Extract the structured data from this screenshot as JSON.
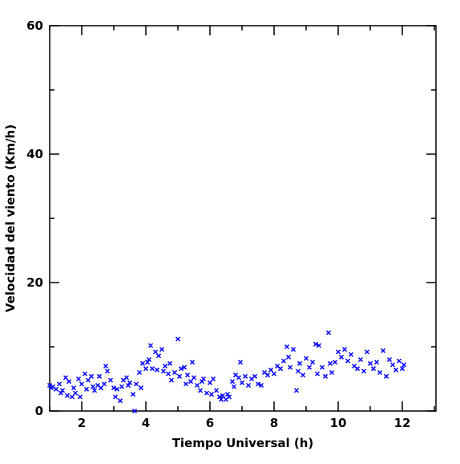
{
  "chart_data": {
    "type": "scatter",
    "xlabel": "Tiempo Universal (h)",
    "ylabel": "Velocidad del viento (Km/h)",
    "color": "#0000ff",
    "xlim": [
      1,
      13.05
    ],
    "ylim": [
      0,
      60
    ],
    "xticks": [
      2,
      4,
      6,
      8,
      10,
      12
    ],
    "yticks": [
      0,
      20,
      40,
      60
    ],
    "xminor_ticks": [
      1,
      3,
      5,
      7,
      9,
      11,
      13
    ],
    "yminor_ticks": [
      10,
      30,
      50
    ],
    "x": [
      1.0,
      1.05,
      1.1,
      1.2,
      1.3,
      1.35,
      1.4,
      1.5,
      1.55,
      1.6,
      1.7,
      1.75,
      1.8,
      1.9,
      1.95,
      2.0,
      2.1,
      2.15,
      2.2,
      2.3,
      2.35,
      2.4,
      2.5,
      2.55,
      2.6,
      2.7,
      2.75,
      2.8,
      2.9,
      3.0,
      3.05,
      3.1,
      3.2,
      3.25,
      3.3,
      3.4,
      3.45,
      3.5,
      3.6,
      3.65,
      3.7,
      3.8,
      3.85,
      3.9,
      4.0,
      4.05,
      4.1,
      4.15,
      4.2,
      4.3,
      4.35,
      4.4,
      4.5,
      4.55,
      4.6,
      4.7,
      4.75,
      4.8,
      4.9,
      5.0,
      5.05,
      5.1,
      5.2,
      5.25,
      5.3,
      5.4,
      5.45,
      5.5,
      5.6,
      5.7,
      5.75,
      5.8,
      5.9,
      6.0,
      6.05,
      6.1,
      6.2,
      6.3,
      6.35,
      6.4,
      6.5,
      6.55,
      6.6,
      6.7,
      6.75,
      6.8,
      6.9,
      6.95,
      7.0,
      7.1,
      7.2,
      7.3,
      7.4,
      7.5,
      7.6,
      7.7,
      7.8,
      7.9,
      8.0,
      8.1,
      8.2,
      8.3,
      8.4,
      8.45,
      8.5,
      8.6,
      8.7,
      8.75,
      8.8,
      8.9,
      9.0,
      9.1,
      9.2,
      9.3,
      9.35,
      9.4,
      9.5,
      9.6,
      9.7,
      9.75,
      9.8,
      9.9,
      10.0,
      10.1,
      10.2,
      10.3,
      10.4,
      10.5,
      10.6,
      10.7,
      10.8,
      10.9,
      11.0,
      11.1,
      11.2,
      11.3,
      11.4,
      11.5,
      11.6,
      11.7,
      11.8,
      11.9,
      12.0,
      12.05
    ],
    "values": [
      4,
      3.6,
      3.8,
      3.4,
      4.2,
      2.8,
      3.2,
      5.2,
      2.4,
      4.6,
      2.2,
      3.6,
      2.8,
      5,
      2.2,
      4.2,
      5.8,
      3.4,
      4.8,
      5.4,
      3.8,
      3.2,
      4,
      5.4,
      3.6,
      4.2,
      7,
      6.2,
      4.8,
      3.6,
      2.2,
      3.4,
      1.6,
      3.8,
      4.8,
      5.2,
      4,
      4.4,
      2.6,
      0,
      4.2,
      6,
      3.6,
      7.4,
      6.6,
      7.6,
      8,
      10.2,
      6.6,
      9.2,
      6.4,
      8.6,
      9.6,
      6.2,
      7,
      5.8,
      7.4,
      4.8,
      6,
      11.2,
      5.4,
      6.6,
      6.8,
      4.2,
      5.6,
      4.6,
      7.6,
      5.2,
      4,
      3.2,
      4.6,
      5,
      2.8,
      4.4,
      2.6,
      5,
      3.2,
      2.2,
      1.8,
      2.4,
      1.8,
      2.6,
      2.2,
      4.6,
      3.8,
      5.6,
      5.2,
      7.6,
      4.4,
      5.4,
      4,
      5,
      5.4,
      4.2,
      4,
      6,
      5.6,
      6.4,
      5.8,
      7,
      6.6,
      7.8,
      10,
      8.4,
      6.8,
      9.6,
      3.2,
      6.2,
      7.4,
      5.6,
      8.2,
      6.8,
      7.6,
      10.4,
      5.8,
      10.2,
      6.8,
      5.4,
      12.2,
      7.4,
      6,
      7.6,
      9.2,
      8.4,
      9.6,
      7.8,
      8.8,
      7,
      6.6,
      8,
      6.2,
      9.2,
      7.4,
      6.6,
      7.6,
      6,
      9.4,
      5.4,
      8,
      7.2,
      6.4,
      7.8,
      6.6,
      7.2
    ]
  }
}
